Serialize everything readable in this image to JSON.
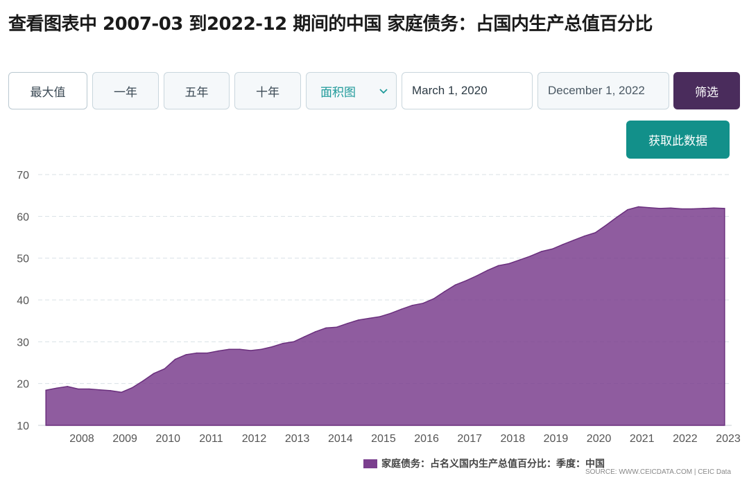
{
  "title": "查看图表中 2007-03 到2022-12 期间的中国 家庭债务：占国内生产总值百分比",
  "toolbar": {
    "range_buttons": [
      "最大值",
      "一年",
      "五年",
      "十年"
    ],
    "chart_type": "面积图",
    "date_from": "March 1, 2020",
    "date_to": "December 1, 2022",
    "filter_label": "筛选",
    "get_data_label": "获取此数据"
  },
  "legend": "家庭债务：占名义国内生产总值百分比：季度：中国",
  "source": "SOURCE: WWW.CEICDATA.COM | CEIC Data",
  "colors": {
    "area": "#7b3f8e",
    "filter_button": "#4a2c5c",
    "get_data_button": "#12908a",
    "accent_text": "#1f9a9a"
  },
  "chart_data": {
    "type": "area",
    "frequency": "quarterly",
    "x_start": "2007-03",
    "x_end": "2022-12",
    "x_tick_labels": [
      "2008",
      "2009",
      "2010",
      "2011",
      "2012",
      "2013",
      "2014",
      "2015",
      "2016",
      "2017",
      "2018",
      "2019",
      "2020",
      "2021",
      "2022",
      "2023"
    ],
    "y_ticks": [
      10,
      20,
      30,
      40,
      50,
      60,
      70
    ],
    "ylim": [
      10,
      70
    ],
    "grid": true,
    "series": [
      {
        "name": "家庭债务：占名义国内生产总值百分比：季度：中国",
        "x": [
          "2007-03",
          "2007-06",
          "2007-09",
          "2007-12",
          "2008-03",
          "2008-06",
          "2008-09",
          "2008-12",
          "2009-03",
          "2009-06",
          "2009-09",
          "2009-12",
          "2010-03",
          "2010-06",
          "2010-09",
          "2010-12",
          "2011-03",
          "2011-06",
          "2011-09",
          "2011-12",
          "2012-03",
          "2012-06",
          "2012-09",
          "2012-12",
          "2013-03",
          "2013-06",
          "2013-09",
          "2013-12",
          "2014-03",
          "2014-06",
          "2014-09",
          "2014-12",
          "2015-03",
          "2015-06",
          "2015-09",
          "2015-12",
          "2016-03",
          "2016-06",
          "2016-09",
          "2016-12",
          "2017-03",
          "2017-06",
          "2017-09",
          "2017-12",
          "2018-03",
          "2018-06",
          "2018-09",
          "2018-12",
          "2019-03",
          "2019-06",
          "2019-09",
          "2019-12",
          "2020-03",
          "2020-06",
          "2020-09",
          "2020-12",
          "2021-03",
          "2021-06",
          "2021-09",
          "2021-12",
          "2022-03",
          "2022-06",
          "2022-09",
          "2022-12"
        ],
        "values": [
          18.4,
          18.9,
          19.3,
          18.7,
          18.7,
          18.5,
          18.3,
          17.9,
          19.0,
          20.6,
          22.4,
          23.5,
          25.8,
          26.9,
          27.3,
          27.3,
          27.8,
          28.2,
          28.2,
          27.9,
          28.2,
          28.8,
          29.6,
          30.0,
          31.2,
          32.4,
          33.3,
          33.5,
          34.4,
          35.2,
          35.6,
          36.0,
          36.8,
          37.8,
          38.7,
          39.2,
          40.3,
          42.0,
          43.6,
          44.6,
          45.8,
          47.1,
          48.2,
          48.7,
          49.6,
          50.5,
          51.6,
          52.2,
          53.3,
          54.3,
          55.3,
          56.1,
          57.9,
          59.8,
          61.6,
          62.3,
          62.1,
          61.9,
          62.0,
          61.8,
          61.8,
          61.9,
          62.0,
          61.9
        ]
      }
    ]
  }
}
